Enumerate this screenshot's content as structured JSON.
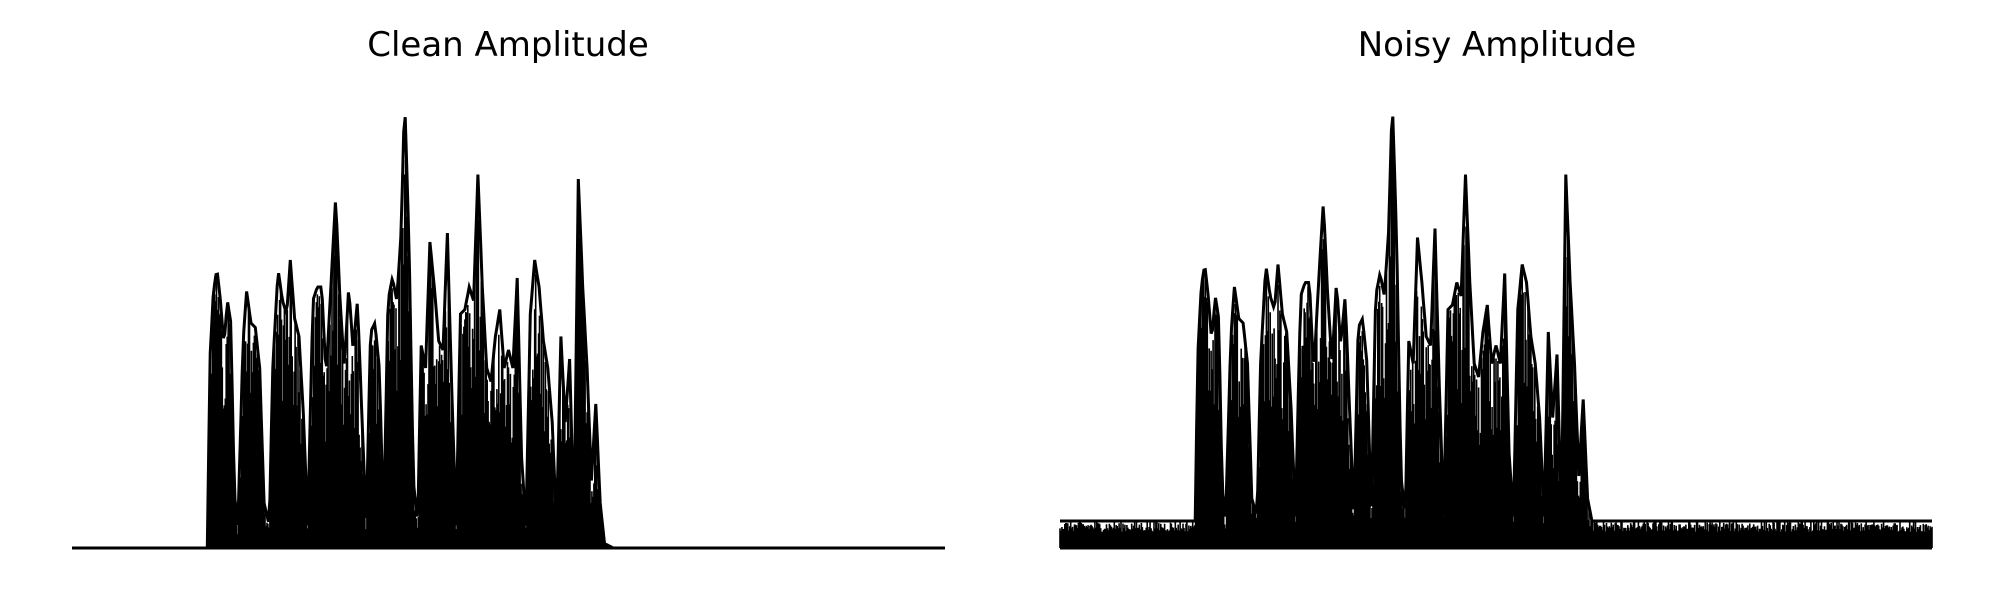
{
  "chart_data": [
    {
      "type": "line",
      "title": "Clean Amplitude",
      "xlabel": "",
      "ylabel": "",
      "axes_visible": false,
      "grid": false,
      "color": "#000000",
      "noise_floor": 0,
      "x_range": [
        0,
        1
      ],
      "y_range": [
        0,
        1
      ],
      "envelope": [
        [
          0.0,
          0.0
        ],
        [
          0.155,
          0.0
        ],
        [
          0.158,
          0.42
        ],
        [
          0.162,
          0.57
        ],
        [
          0.166,
          0.62
        ],
        [
          0.17,
          0.55
        ],
        [
          0.174,
          0.45
        ],
        [
          0.178,
          0.55
        ],
        [
          0.182,
          0.5
        ],
        [
          0.186,
          0.12
        ],
        [
          0.19,
          0.05
        ],
        [
          0.196,
          0.46
        ],
        [
          0.2,
          0.57
        ],
        [
          0.205,
          0.5
        ],
        [
          0.21,
          0.49
        ],
        [
          0.215,
          0.4
        ],
        [
          0.22,
          0.1
        ],
        [
          0.226,
          0.05
        ],
        [
          0.23,
          0.4
        ],
        [
          0.236,
          0.62
        ],
        [
          0.241,
          0.55
        ],
        [
          0.246,
          0.52
        ],
        [
          0.25,
          0.64
        ],
        [
          0.255,
          0.51
        ],
        [
          0.26,
          0.47
        ],
        [
          0.265,
          0.3
        ],
        [
          0.27,
          0.05
        ],
        [
          0.276,
          0.55
        ],
        [
          0.281,
          0.58
        ],
        [
          0.286,
          0.58
        ],
        [
          0.291,
          0.38
        ],
        [
          0.296,
          0.56
        ],
        [
          0.302,
          0.78
        ],
        [
          0.307,
          0.55
        ],
        [
          0.312,
          0.4
        ],
        [
          0.317,
          0.58
        ],
        [
          0.322,
          0.44
        ],
        [
          0.327,
          0.55
        ],
        [
          0.332,
          0.3
        ],
        [
          0.337,
          0.05
        ],
        [
          0.342,
          0.48
        ],
        [
          0.347,
          0.5
        ],
        [
          0.352,
          0.4
        ],
        [
          0.357,
          0.05
        ],
        [
          0.362,
          0.55
        ],
        [
          0.367,
          0.6
        ],
        [
          0.372,
          0.55
        ],
        [
          0.377,
          0.7
        ],
        [
          0.381,
          1.0
        ],
        [
          0.386,
          0.68
        ],
        [
          0.391,
          0.15
        ],
        [
          0.396,
          0.05
        ],
        [
          0.4,
          0.45
        ],
        [
          0.405,
          0.4
        ],
        [
          0.41,
          0.68
        ],
        [
          0.415,
          0.58
        ],
        [
          0.42,
          0.46
        ],
        [
          0.425,
          0.44
        ],
        [
          0.43,
          0.7
        ],
        [
          0.435,
          0.35
        ],
        [
          0.44,
          0.05
        ],
        [
          0.445,
          0.52
        ],
        [
          0.45,
          0.53
        ],
        [
          0.455,
          0.58
        ],
        [
          0.46,
          0.55
        ],
        [
          0.465,
          0.83
        ],
        [
          0.47,
          0.58
        ],
        [
          0.475,
          0.4
        ],
        [
          0.48,
          0.37
        ],
        [
          0.485,
          0.47
        ],
        [
          0.49,
          0.53
        ],
        [
          0.495,
          0.4
        ],
        [
          0.5,
          0.44
        ],
        [
          0.505,
          0.4
        ],
        [
          0.51,
          0.6
        ],
        [
          0.515,
          0.2
        ],
        [
          0.52,
          0.05
        ],
        [
          0.525,
          0.52
        ],
        [
          0.53,
          0.64
        ],
        [
          0.535,
          0.58
        ],
        [
          0.54,
          0.46
        ],
        [
          0.545,
          0.4
        ],
        [
          0.55,
          0.28
        ],
        [
          0.555,
          0.05
        ],
        [
          0.56,
          0.47
        ],
        [
          0.565,
          0.28
        ],
        [
          0.57,
          0.42
        ],
        [
          0.575,
          0.05
        ],
        [
          0.58,
          0.82
        ],
        [
          0.585,
          0.58
        ],
        [
          0.59,
          0.4
        ],
        [
          0.595,
          0.15
        ],
        [
          0.6,
          0.32
        ],
        [
          0.605,
          0.1
        ],
        [
          0.61,
          0.01
        ],
        [
          0.62,
          0.0
        ],
        [
          1.0,
          0.0
        ]
      ]
    },
    {
      "type": "line",
      "title": "Noisy Amplitude",
      "xlabel": "",
      "ylabel": "",
      "axes_visible": false,
      "grid": false,
      "color": "#000000",
      "noise_floor": 0.05,
      "x_range": [
        0,
        1
      ],
      "y_range": [
        0,
        1
      ],
      "envelope": [
        [
          0.0,
          0.06
        ],
        [
          0.155,
          0.06
        ],
        [
          0.158,
          0.43
        ],
        [
          0.162,
          0.58
        ],
        [
          0.166,
          0.63
        ],
        [
          0.17,
          0.56
        ],
        [
          0.174,
          0.46
        ],
        [
          0.178,
          0.56
        ],
        [
          0.182,
          0.51
        ],
        [
          0.186,
          0.13
        ],
        [
          0.19,
          0.07
        ],
        [
          0.196,
          0.47
        ],
        [
          0.2,
          0.58
        ],
        [
          0.205,
          0.51
        ],
        [
          0.21,
          0.5
        ],
        [
          0.215,
          0.41
        ],
        [
          0.22,
          0.11
        ],
        [
          0.226,
          0.07
        ],
        [
          0.23,
          0.41
        ],
        [
          0.236,
          0.63
        ],
        [
          0.241,
          0.56
        ],
        [
          0.246,
          0.53
        ],
        [
          0.25,
          0.63
        ],
        [
          0.255,
          0.52
        ],
        [
          0.26,
          0.48
        ],
        [
          0.265,
          0.31
        ],
        [
          0.27,
          0.07
        ],
        [
          0.276,
          0.56
        ],
        [
          0.281,
          0.59
        ],
        [
          0.286,
          0.59
        ],
        [
          0.291,
          0.39
        ],
        [
          0.296,
          0.57
        ],
        [
          0.302,
          0.77
        ],
        [
          0.307,
          0.56
        ],
        [
          0.312,
          0.41
        ],
        [
          0.317,
          0.59
        ],
        [
          0.322,
          0.45
        ],
        [
          0.327,
          0.56
        ],
        [
          0.332,
          0.31
        ],
        [
          0.337,
          0.07
        ],
        [
          0.342,
          0.49
        ],
        [
          0.347,
          0.51
        ],
        [
          0.352,
          0.41
        ],
        [
          0.357,
          0.07
        ],
        [
          0.362,
          0.56
        ],
        [
          0.367,
          0.61
        ],
        [
          0.372,
          0.56
        ],
        [
          0.377,
          0.71
        ],
        [
          0.381,
          1.0
        ],
        [
          0.386,
          0.69
        ],
        [
          0.391,
          0.16
        ],
        [
          0.396,
          0.07
        ],
        [
          0.4,
          0.46
        ],
        [
          0.405,
          0.41
        ],
        [
          0.41,
          0.69
        ],
        [
          0.415,
          0.59
        ],
        [
          0.42,
          0.47
        ],
        [
          0.425,
          0.45
        ],
        [
          0.43,
          0.71
        ],
        [
          0.435,
          0.36
        ],
        [
          0.44,
          0.07
        ],
        [
          0.445,
          0.53
        ],
        [
          0.45,
          0.54
        ],
        [
          0.455,
          0.59
        ],
        [
          0.46,
          0.56
        ],
        [
          0.465,
          0.83
        ],
        [
          0.47,
          0.59
        ],
        [
          0.475,
          0.41
        ],
        [
          0.48,
          0.38
        ],
        [
          0.485,
          0.48
        ],
        [
          0.49,
          0.54
        ],
        [
          0.495,
          0.41
        ],
        [
          0.5,
          0.45
        ],
        [
          0.505,
          0.41
        ],
        [
          0.51,
          0.61
        ],
        [
          0.515,
          0.21
        ],
        [
          0.52,
          0.07
        ],
        [
          0.525,
          0.53
        ],
        [
          0.53,
          0.63
        ],
        [
          0.535,
          0.59
        ],
        [
          0.54,
          0.47
        ],
        [
          0.545,
          0.41
        ],
        [
          0.55,
          0.29
        ],
        [
          0.555,
          0.07
        ],
        [
          0.56,
          0.48
        ],
        [
          0.565,
          0.29
        ],
        [
          0.57,
          0.43
        ],
        [
          0.575,
          0.07
        ],
        [
          0.58,
          0.83
        ],
        [
          0.585,
          0.59
        ],
        [
          0.59,
          0.41
        ],
        [
          0.595,
          0.16
        ],
        [
          0.6,
          0.33
        ],
        [
          0.605,
          0.11
        ],
        [
          0.61,
          0.06
        ],
        [
          1.0,
          0.06
        ]
      ]
    }
  ]
}
